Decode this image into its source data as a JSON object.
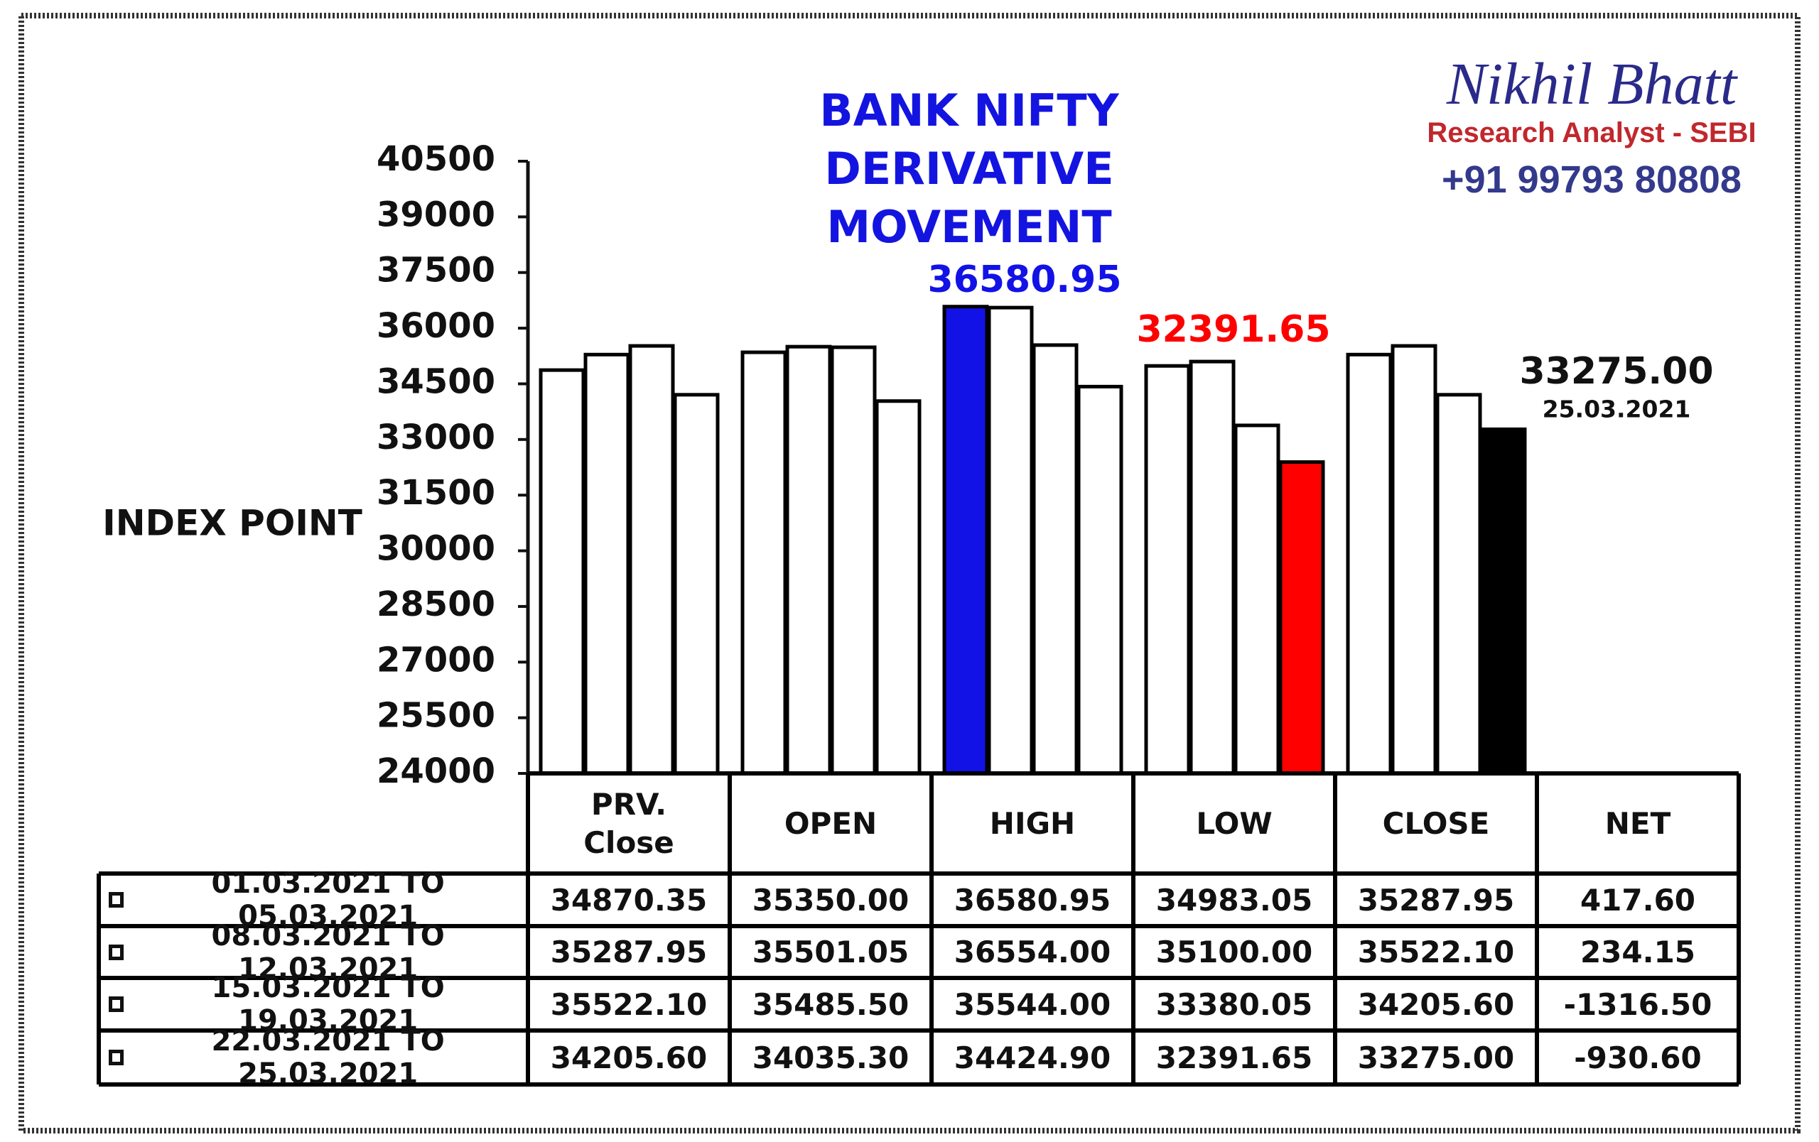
{
  "chart_data": {
    "type": "bar",
    "title": "BANK NIFTY DERIVATIVE MOVEMENT",
    "y_label": "INDEX POINT",
    "brand": {
      "name": "Nikhil Bhatt",
      "role": "Research Analyst - SEBI",
      "phone": "+91 99793 80808"
    },
    "categories": [
      "PRV. Close",
      "OPEN",
      "HIGH",
      "LOW",
      "CLOSE"
    ],
    "series": [
      {
        "name": "01.03.2021 TO 05.03.2021",
        "color": "#ffffff",
        "colors": [
          "#ffffff",
          "#ffffff",
          "#1212e6",
          "#ffffff",
          "#ffffff"
        ],
        "values": [
          34870.35,
          35350.0,
          36580.95,
          34983.05,
          35287.95
        ],
        "value_labels": [
          "34870.35",
          "35350.00",
          "36580.95",
          "34983.05",
          "35287.95"
        ]
      },
      {
        "name": "08.03.2021 TO 12.03.2021",
        "color": "#ffffff",
        "colors": [
          "#ffffff",
          "#ffffff",
          "#ffffff",
          "#ffffff",
          "#ffffff"
        ],
        "values": [
          35287.95,
          35501.05,
          36554.0,
          35100.0,
          35522.1
        ],
        "value_labels": [
          "35287.95",
          "35501.05",
          "36554.00",
          "35100.00",
          "35522.10"
        ]
      },
      {
        "name": "15.03.2021 TO 19.03.2021",
        "color": "#ffffff",
        "colors": [
          "#ffffff",
          "#ffffff",
          "#ffffff",
          "#ffffff",
          "#ffffff"
        ],
        "values": [
          35522.1,
          35485.5,
          35544.0,
          33380.05,
          34205.6
        ],
        "value_labels": [
          "35522.10",
          "35485.50",
          "35544.00",
          "33380.05",
          "34205.60"
        ]
      },
      {
        "name": "22.03.2021 TO 25.03.2021",
        "color": "#ffffff",
        "colors": [
          "#ffffff",
          "#ffffff",
          "#ffffff",
          "#ff0000",
          "#000000"
        ],
        "values": [
          34205.6,
          34035.3,
          34424.9,
          32391.65,
          33275.0
        ],
        "value_labels": [
          "34205.60",
          "34035.30",
          "34424.90",
          "32391.65",
          "33275.00"
        ]
      }
    ],
    "net": {
      "label": "NET",
      "values": [
        417.6,
        234.15,
        -1316.5,
        -930.6
      ],
      "value_labels": [
        "417.60",
        "234.15",
        "-1316.50",
        "-930.60"
      ]
    },
    "annotations": [
      {
        "text": "36580.95",
        "color": "#1212e6"
      },
      {
        "text": "32391.65",
        "color": "#ff0000"
      },
      {
        "text": "33275.00",
        "color": "#111111"
      },
      {
        "text": "25.03.2021",
        "color": "#111111"
      }
    ],
    "ylim": [
      24000,
      40500
    ],
    "yticks": [
      24000,
      25500,
      27000,
      28500,
      30000,
      31500,
      33000,
      34500,
      36000,
      37500,
      39000,
      40500
    ],
    "grid": false
  }
}
